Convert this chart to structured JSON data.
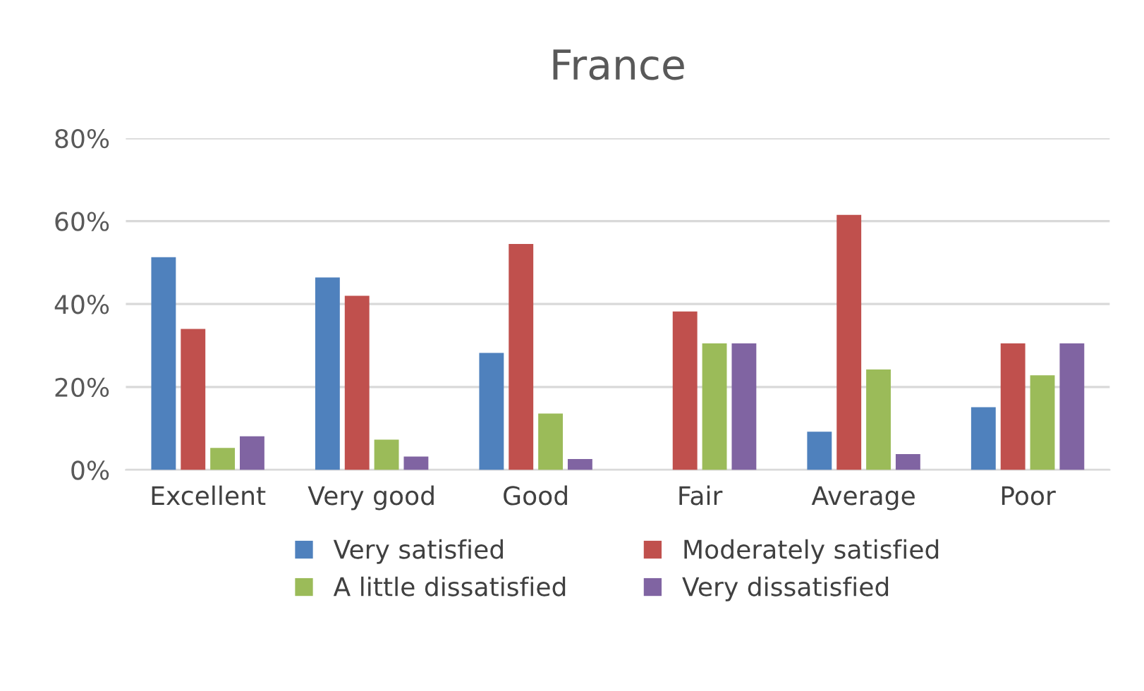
{
  "chart_data": {
    "type": "bar",
    "title": "France",
    "categories": [
      "Excellent",
      "Very good",
      "Good",
      "Fair",
      "Average",
      "Poor"
    ],
    "series": [
      {
        "name": "Very satisfied",
        "color": "#4f81bd",
        "values": [
          51.3,
          46.4,
          28.2,
          null,
          9.2,
          15.1
        ]
      },
      {
        "name": "Moderately satisfied",
        "color": "#c0504d",
        "values": [
          34.0,
          42.0,
          54.5,
          38.2,
          61.5,
          30.5
        ]
      },
      {
        "name": "A little dissatisfied",
        "color": "#9bbb59",
        "values": [
          5.3,
          7.3,
          13.6,
          30.5,
          24.2,
          22.8
        ]
      },
      {
        "name": "Very dissatisfied",
        "color": "#8064a2",
        "values": [
          8.1,
          3.2,
          2.6,
          30.5,
          3.8,
          30.5
        ]
      }
    ],
    "ylim": [
      0,
      80
    ],
    "yticks": [
      {
        "value": 0,
        "label": "0%"
      },
      {
        "value": 20,
        "label": "20%"
      },
      {
        "value": 40,
        "label": "40%"
      },
      {
        "value": 60,
        "label": "60%"
      },
      {
        "value": 80,
        "label": "80%"
      }
    ],
    "grid": "y",
    "legend": "bottom"
  }
}
